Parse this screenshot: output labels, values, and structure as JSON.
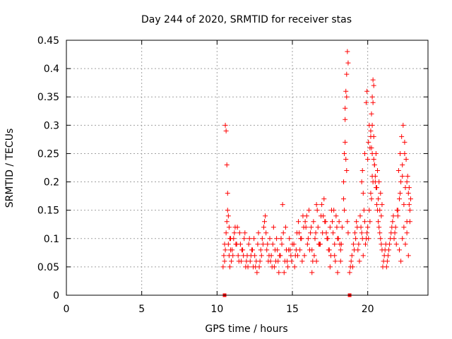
{
  "chart_data": {
    "type": "scatter",
    "title": "Day 244 of 2020, SRMTID for receiver stas",
    "xlabel": "GPS time / hours",
    "ylabel": "SRMTID / TECUs",
    "xlim": [
      0,
      24
    ],
    "ylim": [
      0,
      0.45
    ],
    "xticks": [
      0,
      5,
      10,
      15,
      20
    ],
    "xtick_labels": [
      "0",
      "5",
      "10",
      "15",
      "20"
    ],
    "yticks": [
      0,
      0.05,
      0.1,
      0.15,
      0.2,
      0.25,
      0.3,
      0.35,
      0.4,
      0.45
    ],
    "ytick_labels": [
      "0",
      "0.05",
      "0.1",
      "0.15",
      "0.2",
      "0.25",
      "0.3",
      "0.35",
      "0.4",
      "0.45"
    ],
    "grid": true,
    "marker": "+",
    "color": "#ff0000",
    "zero_markers_x": [
      10.5,
      18.8
    ],
    "series": [
      {
        "name": "stas",
        "x": [
          10.4,
          10.45,
          10.5,
          10.55,
          10.6,
          10.65,
          10.7,
          10.75,
          10.8,
          10.85,
          10.9,
          10.95,
          10.5,
          10.55,
          10.6,
          10.65,
          10.7,
          10.75,
          10.8,
          10.85,
          10.9,
          11.0,
          11.1,
          11.2,
          11.3,
          11.4,
          11.5,
          11.6,
          11.7,
          11.8,
          11.9,
          12.0,
          12.1,
          12.2,
          12.3,
          12.4,
          12.5,
          12.6,
          12.7,
          12.8,
          12.9,
          13.0,
          13.1,
          13.2,
          13.3,
          13.4,
          13.5,
          13.6,
          13.7,
          13.8,
          13.9,
          14.0,
          14.1,
          14.2,
          14.3,
          14.4,
          14.5,
          14.6,
          14.7,
          14.8,
          14.9,
          15.0,
          11.05,
          11.25,
          11.45,
          11.65,
          11.85,
          12.05,
          12.25,
          12.45,
          12.65,
          12.85,
          13.05,
          13.25,
          13.45,
          13.65,
          13.85,
          14.05,
          14.25,
          14.45,
          14.65,
          14.85,
          11.15,
          11.35,
          11.55,
          11.75,
          11.95,
          12.15,
          12.35,
          12.55,
          12.75,
          12.95,
          13.15,
          13.35,
          13.55,
          13.75,
          13.95,
          14.15,
          14.35,
          14.55,
          14.75,
          14.95,
          15.1,
          15.2,
          15.3,
          15.4,
          15.5,
          15.6,
          15.7,
          15.8,
          15.9,
          16.0,
          16.1,
          16.2,
          16.3,
          16.4,
          16.5,
          16.6,
          16.7,
          16.8,
          16.9,
          17.0,
          17.1,
          17.2,
          17.3,
          17.4,
          17.5,
          17.6,
          17.7,
          17.8,
          17.9,
          18.0,
          18.1,
          18.2,
          18.3,
          15.15,
          15.35,
          15.55,
          15.75,
          15.95,
          16.15,
          16.35,
          16.55,
          16.75,
          16.95,
          17.15,
          17.35,
          17.55,
          17.75,
          17.95,
          18.15,
          15.25,
          15.45,
          15.65,
          15.85,
          16.05,
          16.25,
          16.45,
          16.65,
          16.85,
          17.05,
          17.25,
          17.45,
          17.65,
          17.85,
          18.05,
          18.25,
          16.3,
          16.6,
          17.5,
          17.8,
          18.0,
          18.2,
          18.4,
          18.45,
          18.5,
          18.55,
          18.6,
          18.65,
          18.7,
          18.5,
          18.55,
          18.6,
          18.4,
          18.45,
          18.65,
          18.7,
          18.5,
          18.6,
          18.8,
          18.9,
          19.0,
          19.1,
          19.2,
          19.3,
          19.4,
          19.5,
          19.6,
          19.7,
          19.8,
          19.9,
          18.85,
          18.95,
          19.05,
          19.15,
          19.25,
          19.35,
          19.45,
          19.55,
          19.65,
          19.75,
          19.85,
          19.95,
          19.6,
          19.65,
          19.7,
          19.8,
          19.9,
          19.95,
          20.0,
          20.05,
          20.1,
          20.15,
          20.2,
          20.25,
          20.3,
          20.35,
          20.4,
          20.45,
          20.5,
          20.55,
          20.6,
          20.65,
          20.7,
          20.75,
          20.8,
          20.85,
          20.9,
          20.95,
          20.0,
          20.1,
          20.2,
          20.3,
          20.4,
          20.5,
          20.6,
          20.7,
          20.8,
          20.9,
          20.05,
          20.15,
          20.25,
          20.35,
          20.45,
          20.55,
          20.65,
          20.75,
          20.85,
          20.95,
          20.2,
          20.3,
          20.35,
          20.4,
          20.25,
          20.3,
          21.0,
          21.1,
          21.2,
          21.3,
          21.4,
          21.5,
          21.6,
          21.7,
          21.8,
          21.9,
          21.05,
          21.15,
          21.25,
          21.35,
          21.45,
          21.55,
          21.65,
          21.75,
          21.85,
          21.95,
          22.0,
          22.1,
          22.2,
          22.3,
          22.4,
          22.5,
          22.6,
          22.7,
          22.8,
          22.05,
          22.15,
          22.25,
          22.35,
          22.45,
          22.55,
          22.65,
          22.75,
          22.85,
          22.1,
          22.2,
          22.3,
          22.4,
          22.5,
          22.6,
          22.7,
          22.8,
          22.0,
          22.15,
          22.3,
          22.45,
          22.6,
          22.75
        ],
        "y": [
          0.05,
          0.07,
          0.09,
          0.3,
          0.29,
          0.23,
          0.18,
          0.14,
          0.12,
          0.1,
          0.08,
          0.06,
          0.06,
          0.08,
          0.11,
          0.13,
          0.15,
          0.09,
          0.07,
          0.05,
          0.1,
          0.08,
          0.1,
          0.12,
          0.09,
          0.07,
          0.11,
          0.06,
          0.08,
          0.1,
          0.05,
          0.07,
          0.09,
          0.06,
          0.08,
          0.05,
          0.07,
          0.06,
          0.09,
          0.05,
          0.08,
          0.1,
          0.12,
          0.14,
          0.08,
          0.06,
          0.1,
          0.07,
          0.09,
          0.05,
          0.06,
          0.08,
          0.04,
          0.07,
          0.09,
          0.11,
          0.06,
          0.08,
          0.05,
          0.1,
          0.07,
          0.09,
          0.07,
          0.09,
          0.06,
          0.08,
          0.11,
          0.05,
          0.07,
          0.1,
          0.04,
          0.06,
          0.09,
          0.11,
          0.07,
          0.05,
          0.08,
          0.06,
          0.1,
          0.04,
          0.06,
          0.08,
          0.11,
          0.12,
          0.09,
          0.07,
          0.06,
          0.1,
          0.08,
          0.05,
          0.11,
          0.07,
          0.13,
          0.09,
          0.06,
          0.12,
          0.1,
          0.07,
          0.16,
          0.12,
          0.08,
          0.06,
          0.09,
          0.07,
          0.11,
          0.13,
          0.08,
          0.1,
          0.14,
          0.07,
          0.12,
          0.09,
          0.15,
          0.11,
          0.08,
          0.13,
          0.1,
          0.16,
          0.12,
          0.09,
          0.14,
          0.11,
          0.17,
          0.13,
          0.1,
          0.08,
          0.12,
          0.15,
          0.11,
          0.09,
          0.14,
          0.1,
          0.13,
          0.08,
          0.12,
          0.05,
          0.07,
          0.1,
          0.12,
          0.14,
          0.08,
          0.06,
          0.11,
          0.09,
          0.16,
          0.13,
          0.1,
          0.07,
          0.15,
          0.12,
          0.09,
          0.08,
          0.11,
          0.06,
          0.13,
          0.1,
          0.12,
          0.07,
          0.15,
          0.09,
          0.14,
          0.11,
          0.08,
          0.13,
          0.06,
          0.1,
          0.09,
          0.04,
          0.06,
          0.05,
          0.07,
          0.04,
          0.06,
          0.2,
          0.25,
          0.31,
          0.36,
          0.39,
          0.43,
          0.41,
          0.27,
          0.24,
          0.22,
          0.17,
          0.15,
          0.13,
          0.11,
          0.33,
          0.35,
          0.04,
          0.06,
          0.05,
          0.08,
          0.1,
          0.12,
          0.09,
          0.14,
          0.11,
          0.07,
          0.13,
          0.1,
          0.05,
          0.07,
          0.09,
          0.11,
          0.13,
          0.08,
          0.06,
          0.12,
          0.1,
          0.15,
          0.09,
          0.11,
          0.2,
          0.22,
          0.18,
          0.25,
          0.34,
          0.36,
          0.24,
          0.27,
          0.3,
          0.26,
          0.29,
          0.32,
          0.35,
          0.38,
          0.28,
          0.23,
          0.21,
          0.25,
          0.19,
          0.22,
          0.17,
          0.2,
          0.15,
          0.18,
          0.14,
          0.16,
          0.12,
          0.15,
          0.18,
          0.21,
          0.24,
          0.2,
          0.16,
          0.13,
          0.11,
          0.09,
          0.1,
          0.13,
          0.17,
          0.2,
          0.23,
          0.19,
          0.15,
          0.12,
          0.1,
          0.08,
          0.28,
          0.3,
          0.34,
          0.37,
          0.26,
          0.25,
          0.05,
          0.07,
          0.09,
          0.06,
          0.08,
          0.1,
          0.12,
          0.14,
          0.11,
          0.09,
          0.06,
          0.08,
          0.05,
          0.07,
          0.09,
          0.11,
          0.13,
          0.1,
          0.12,
          0.15,
          0.14,
          0.17,
          0.2,
          0.23,
          0.16,
          0.19,
          0.13,
          0.18,
          0.15,
          0.22,
          0.25,
          0.28,
          0.3,
          0.27,
          0.24,
          0.21,
          0.19,
          0.17,
          0.08,
          0.06,
          0.1,
          0.12,
          0.09,
          0.11,
          0.07,
          0.13,
          0.15,
          0.18,
          0.21,
          0.25,
          0.2,
          0.16
        ]
      }
    ]
  }
}
